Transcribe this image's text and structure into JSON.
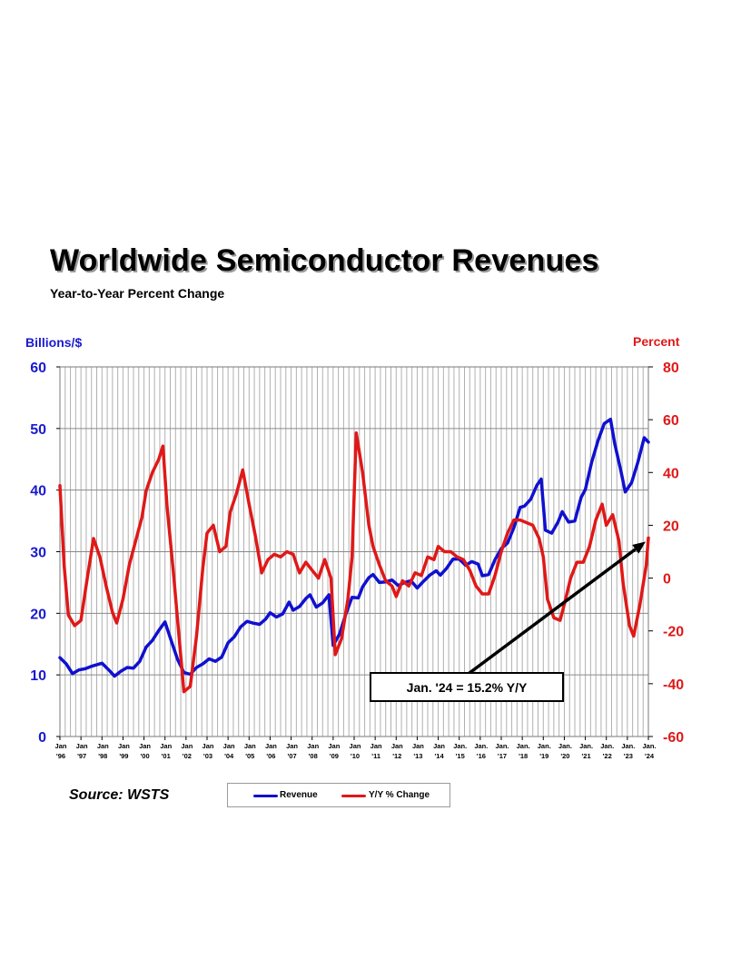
{
  "title": "Worldwide Semiconductor Revenues",
  "subtitle": "Year-to-Year Percent Change",
  "left_axis_unit": "Billions/$",
  "right_axis_unit": "Percent",
  "source": "Source: WSTS",
  "annotation": "Jan. '24 = 15.2% Y/Y",
  "legend": {
    "revenue": "Revenue",
    "yoy": "Y/Y % Change"
  },
  "colors": {
    "revenue": "#1010d0",
    "yoy": "#e01818",
    "grid": "#b0b0b0",
    "left_axis_text": "#1a1ad0",
    "right_axis_text": "#e01818"
  },
  "chart_data": {
    "type": "line",
    "x_ticks": [
      [
        "Jan",
        "'96"
      ],
      [
        "Jan",
        "'97"
      ],
      [
        "Jan",
        "'98"
      ],
      [
        "Jan",
        "'99"
      ],
      [
        "Jan",
        "'00"
      ],
      [
        "Jan",
        "'01"
      ],
      [
        "Jan",
        "'02"
      ],
      [
        "Jan",
        "'03"
      ],
      [
        "Jan",
        "'04"
      ],
      [
        "Jan",
        "'05"
      ],
      [
        "Jan",
        "'06"
      ],
      [
        "Jan",
        "'07"
      ],
      [
        "Jan",
        "'08"
      ],
      [
        "Jan",
        "'09"
      ],
      [
        "Jan",
        "'10"
      ],
      [
        "Jan",
        "'11"
      ],
      [
        "Jan",
        "'12"
      ],
      [
        "Jan",
        "'13"
      ],
      [
        "Jan",
        "'14"
      ],
      [
        "Jan.",
        "'15"
      ],
      [
        "Jan.",
        "'16"
      ],
      [
        "Jan.",
        "'17"
      ],
      [
        "Jan.",
        "'18"
      ],
      [
        "Jan.",
        "'19"
      ],
      [
        "Jan.",
        "'20"
      ],
      [
        "Jan.",
        "'21"
      ],
      [
        "Jan.",
        "'22"
      ],
      [
        "Jan.",
        "'23"
      ],
      [
        "Jan.",
        "'24"
      ]
    ],
    "y_left": {
      "label": "Billions/$",
      "min": 0,
      "max": 60,
      "ticks": [
        "0",
        "10",
        "20",
        "30",
        "40",
        "50",
        "60"
      ]
    },
    "y_right": {
      "label": "Percent",
      "min": -60,
      "max": 80,
      "ticks": [
        "-60",
        "-40",
        "-20",
        "0",
        "20",
        "40",
        "60",
        "80"
      ]
    },
    "grid": true,
    "legend_position": "bottom",
    "series": [
      {
        "name": "Revenue",
        "axis": "left",
        "points": [
          [
            1996.0,
            12.8
          ],
          [
            1996.3,
            11.8
          ],
          [
            1996.6,
            10.2
          ],
          [
            1996.9,
            10.8
          ],
          [
            1997.2,
            11.0
          ],
          [
            1997.5,
            11.4
          ],
          [
            1998.0,
            11.9
          ],
          [
            1998.3,
            10.9
          ],
          [
            1998.6,
            9.8
          ],
          [
            1998.9,
            10.6
          ],
          [
            1999.2,
            11.2
          ],
          [
            1999.5,
            11.1
          ],
          [
            1999.8,
            12.2
          ],
          [
            2000.1,
            14.5
          ],
          [
            2000.4,
            15.6
          ],
          [
            2000.7,
            17.2
          ],
          [
            2001.0,
            18.6
          ],
          [
            2001.3,
            15.5
          ],
          [
            2001.6,
            12.5
          ],
          [
            2001.9,
            10.4
          ],
          [
            2002.2,
            10.1
          ],
          [
            2002.5,
            11.2
          ],
          [
            2002.8,
            11.8
          ],
          [
            2003.1,
            12.6
          ],
          [
            2003.4,
            12.2
          ],
          [
            2003.7,
            12.9
          ],
          [
            2004.0,
            15.2
          ],
          [
            2004.3,
            16.2
          ],
          [
            2004.6,
            17.8
          ],
          [
            2004.9,
            18.7
          ],
          [
            2005.2,
            18.4
          ],
          [
            2005.5,
            18.2
          ],
          [
            2005.8,
            19.1
          ],
          [
            2006.0,
            20.1
          ],
          [
            2006.3,
            19.4
          ],
          [
            2006.6,
            19.9
          ],
          [
            2006.9,
            21.8
          ],
          [
            2007.1,
            20.5
          ],
          [
            2007.4,
            21.1
          ],
          [
            2007.7,
            22.4
          ],
          [
            2007.9,
            23.0
          ],
          [
            2008.2,
            21.0
          ],
          [
            2008.5,
            21.7
          ],
          [
            2008.8,
            23.0
          ],
          [
            2009.0,
            14.8
          ],
          [
            2009.3,
            16.6
          ],
          [
            2009.6,
            19.8
          ],
          [
            2009.9,
            22.6
          ],
          [
            2010.2,
            22.5
          ],
          [
            2010.4,
            24.3
          ],
          [
            2010.7,
            25.8
          ],
          [
            2010.9,
            26.3
          ],
          [
            2011.2,
            25.0
          ],
          [
            2011.5,
            25.1
          ],
          [
            2011.8,
            25.4
          ],
          [
            2012.1,
            24.5
          ],
          [
            2012.4,
            25.0
          ],
          [
            2012.7,
            25.3
          ],
          [
            2013.0,
            24.1
          ],
          [
            2013.3,
            25.2
          ],
          [
            2013.6,
            26.2
          ],
          [
            2013.9,
            26.9
          ],
          [
            2014.1,
            26.2
          ],
          [
            2014.4,
            27.3
          ],
          [
            2014.7,
            28.8
          ],
          [
            2015.0,
            28.8
          ],
          [
            2015.3,
            27.8
          ],
          [
            2015.6,
            28.4
          ],
          [
            2015.9,
            28.0
          ],
          [
            2016.1,
            26.1
          ],
          [
            2016.4,
            26.3
          ],
          [
            2016.7,
            28.7
          ],
          [
            2017.0,
            30.5
          ],
          [
            2017.3,
            31.4
          ],
          [
            2017.6,
            33.9
          ],
          [
            2017.9,
            37.2
          ],
          [
            2018.1,
            37.4
          ],
          [
            2018.4,
            38.5
          ],
          [
            2018.7,
            40.8
          ],
          [
            2018.9,
            41.8
          ],
          [
            2019.1,
            33.5
          ],
          [
            2019.4,
            33.0
          ],
          [
            2019.7,
            34.8
          ],
          [
            2019.9,
            36.5
          ],
          [
            2020.2,
            34.8
          ],
          [
            2020.5,
            35.0
          ],
          [
            2020.8,
            38.8
          ],
          [
            2021.0,
            40.1
          ],
          [
            2021.3,
            44.5
          ],
          [
            2021.6,
            48.0
          ],
          [
            2021.9,
            50.8
          ],
          [
            2022.2,
            51.5
          ],
          [
            2022.4,
            47.5
          ],
          [
            2022.7,
            43.0
          ],
          [
            2022.9,
            39.7
          ],
          [
            2023.2,
            41.2
          ],
          [
            2023.5,
            44.5
          ],
          [
            2023.8,
            48.5
          ],
          [
            2024.0,
            47.8
          ]
        ]
      },
      {
        "name": "Y/Y % Change",
        "axis": "right",
        "points": [
          [
            1996.0,
            35
          ],
          [
            1996.2,
            5
          ],
          [
            1996.4,
            -14
          ],
          [
            1996.7,
            -18
          ],
          [
            1997.0,
            -16
          ],
          [
            1997.3,
            0
          ],
          [
            1997.6,
            15
          ],
          [
            1997.9,
            8
          ],
          [
            1998.2,
            -3
          ],
          [
            1998.5,
            -13
          ],
          [
            1998.7,
            -17
          ],
          [
            1999.0,
            -8
          ],
          [
            1999.3,
            5
          ],
          [
            1999.6,
            14
          ],
          [
            1999.9,
            23
          ],
          [
            2000.1,
            33
          ],
          [
            2000.4,
            40
          ],
          [
            2000.7,
            45
          ],
          [
            2000.9,
            50
          ],
          [
            2001.1,
            27
          ],
          [
            2001.4,
            2
          ],
          [
            2001.7,
            -25
          ],
          [
            2001.9,
            -43
          ],
          [
            2002.2,
            -41
          ],
          [
            2002.5,
            -22
          ],
          [
            2002.8,
            4
          ],
          [
            2003.0,
            17
          ],
          [
            2003.3,
            20
          ],
          [
            2003.6,
            10
          ],
          [
            2003.9,
            12
          ],
          [
            2004.1,
            25
          ],
          [
            2004.4,
            32
          ],
          [
            2004.7,
            41
          ],
          [
            2005.0,
            28
          ],
          [
            2005.3,
            16
          ],
          [
            2005.6,
            2
          ],
          [
            2005.9,
            7
          ],
          [
            2006.2,
            9
          ],
          [
            2006.5,
            8
          ],
          [
            2006.8,
            10
          ],
          [
            2007.1,
            9
          ],
          [
            2007.4,
            2
          ],
          [
            2007.7,
            6
          ],
          [
            2008.0,
            3
          ],
          [
            2008.3,
            0
          ],
          [
            2008.6,
            7
          ],
          [
            2008.9,
            0
          ],
          [
            2009.1,
            -29
          ],
          [
            2009.4,
            -23
          ],
          [
            2009.7,
            -8
          ],
          [
            2009.9,
            8
          ],
          [
            2010.1,
            55
          ],
          [
            2010.4,
            40
          ],
          [
            2010.7,
            20
          ],
          [
            2010.9,
            12
          ],
          [
            2011.2,
            5
          ],
          [
            2011.5,
            -1
          ],
          [
            2011.8,
            -3
          ],
          [
            2012.0,
            -7
          ],
          [
            2012.3,
            -1
          ],
          [
            2012.6,
            -3
          ],
          [
            2012.9,
            2
          ],
          [
            2013.2,
            1
          ],
          [
            2013.5,
            8
          ],
          [
            2013.8,
            7
          ],
          [
            2014.0,
            12
          ],
          [
            2014.3,
            10
          ],
          [
            2014.6,
            10
          ],
          [
            2014.9,
            8
          ],
          [
            2015.2,
            7
          ],
          [
            2015.5,
            3
          ],
          [
            2015.8,
            -3
          ],
          [
            2016.1,
            -6
          ],
          [
            2016.4,
            -6
          ],
          [
            2016.7,
            1
          ],
          [
            2017.0,
            10
          ],
          [
            2017.3,
            17
          ],
          [
            2017.6,
            22
          ],
          [
            2017.9,
            22
          ],
          [
            2018.2,
            21
          ],
          [
            2018.5,
            20
          ],
          [
            2018.8,
            15
          ],
          [
            2019.0,
            8
          ],
          [
            2019.2,
            -8
          ],
          [
            2019.5,
            -15
          ],
          [
            2019.8,
            -16
          ],
          [
            2020.0,
            -10
          ],
          [
            2020.3,
            0
          ],
          [
            2020.6,
            6
          ],
          [
            2020.9,
            6
          ],
          [
            2021.2,
            12
          ],
          [
            2021.5,
            22
          ],
          [
            2021.8,
            28
          ],
          [
            2022.0,
            20
          ],
          [
            2022.3,
            24
          ],
          [
            2022.6,
            14
          ],
          [
            2022.8,
            -2
          ],
          [
            2023.1,
            -18
          ],
          [
            2023.3,
            -22
          ],
          [
            2023.6,
            -10
          ],
          [
            2023.9,
            5
          ],
          [
            2024.0,
            15.2
          ]
        ]
      }
    ]
  }
}
